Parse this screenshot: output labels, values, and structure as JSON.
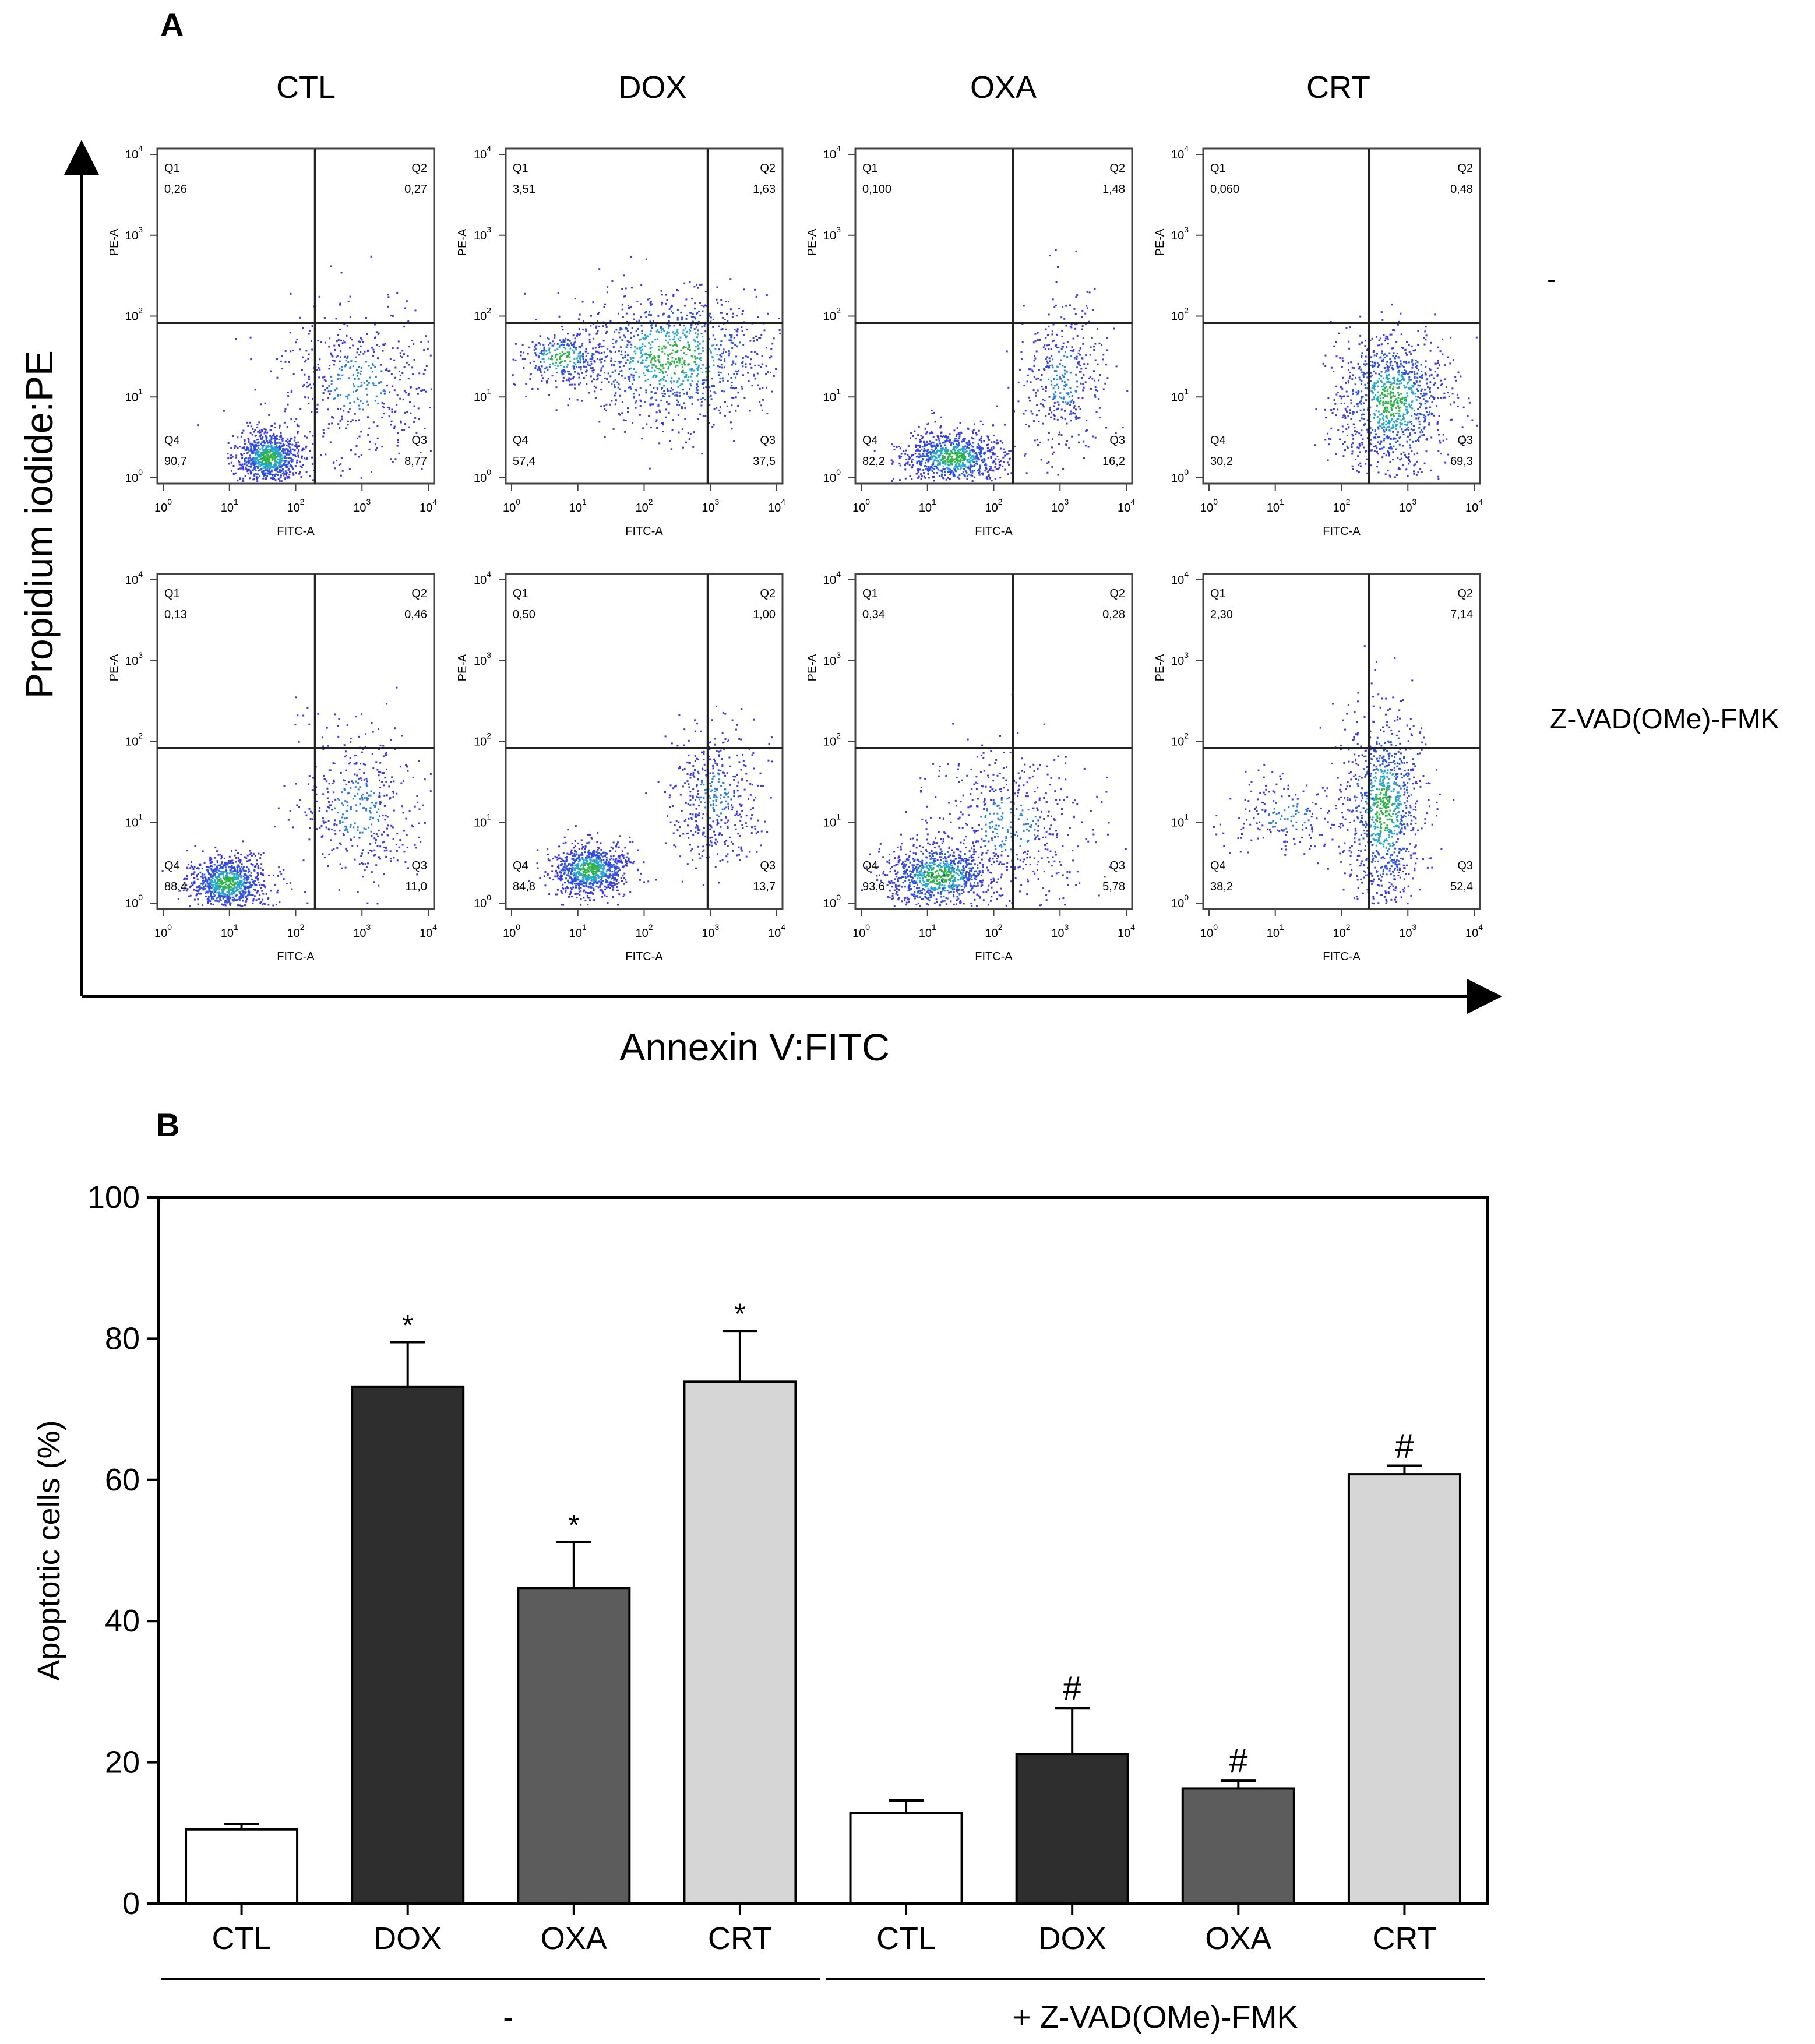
{
  "panel_a": {
    "label": "A",
    "columns": [
      "CTL",
      "DOX",
      "OXA",
      "CRT"
    ],
    "row_labels": [
      "-",
      "Z-VAD(OMe)-FMK"
    ],
    "y_axis_label": "Propidium iodide:PE",
    "x_axis_label": "Annexin V:FITC",
    "plot_x_label": "FITC-A",
    "plot_y_label": "PE-A",
    "tick_base": "10",
    "tick_exponents": [
      "0",
      "1",
      "2",
      "3",
      "4"
    ],
    "quadrant_names": [
      "Q1",
      "Q2",
      "Q3",
      "Q4"
    ],
    "plots": [
      {
        "row": 0,
        "col": 0,
        "q1": "0,26",
        "q2": "0,27",
        "q3": "8,77",
        "q4": "90,7"
      },
      {
        "row": 0,
        "col": 1,
        "q1": "3,51",
        "q2": "1,63",
        "q3": "37,5",
        "q4": "57,4"
      },
      {
        "row": 0,
        "col": 2,
        "q1": "0,100",
        "q2": "1,48",
        "q3": "16,2",
        "q4": "82,2"
      },
      {
        "row": 0,
        "col": 3,
        "q1": "0,060",
        "q2": "0,48",
        "q3": "69,3",
        "q4": "30,2"
      },
      {
        "row": 1,
        "col": 0,
        "q1": "0,13",
        "q2": "0,46",
        "q3": "11,0",
        "q4": "88,4"
      },
      {
        "row": 1,
        "col": 1,
        "q1": "0,50",
        "q2": "1,00",
        "q3": "13,7",
        "q4": "84,8"
      },
      {
        "row": 1,
        "col": 2,
        "q1": "0,34",
        "q2": "0,28",
        "q3": "5,78",
        "q4": "93,6"
      },
      {
        "row": 1,
        "col": 3,
        "q1": "2,30",
        "q2": "7,14",
        "q3": "52,4",
        "q4": "38,2"
      }
    ]
  },
  "chart_data": {
    "label": "B",
    "type": "bar",
    "categories": [
      "CTL",
      "DOX",
      "OXA",
      "CRT",
      "CTL",
      "DOX",
      "OXA",
      "CRT"
    ],
    "values": [
      10.5,
      73.2,
      44.7,
      73.9,
      12.8,
      21.2,
      16.3,
      60.8
    ],
    "errors": [
      0.8,
      6.3,
      6.5,
      7.2,
      1.8,
      6.5,
      1.1,
      1.2
    ],
    "bar_colors": [
      "#ffffff",
      "#2e2e2e",
      "#5c5c5c",
      "#d6d6d6",
      "#ffffff",
      "#2e2e2e",
      "#5c5c5c",
      "#d6d6d6"
    ],
    "significance": [
      "",
      "*",
      "*",
      "*",
      "",
      "#",
      "#",
      "#"
    ],
    "ylabel": "Apoptotic cells (%)",
    "ylim": [
      0,
      100
    ],
    "yticks": [
      0,
      20,
      40,
      60,
      80,
      100
    ],
    "groups": [
      {
        "label": "-",
        "categories": [
          0,
          1,
          2,
          3
        ]
      },
      {
        "label": "+ Z-VAD(OMe)-FMK",
        "categories": [
          4,
          5,
          6,
          7
        ]
      }
    ]
  }
}
